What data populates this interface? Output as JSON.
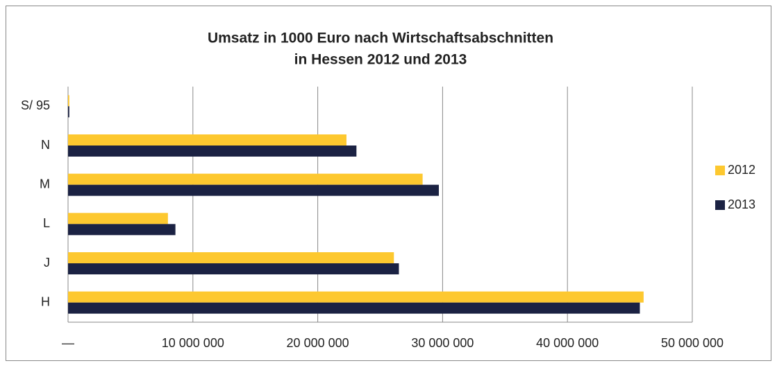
{
  "chart_data": {
    "type": "hbar",
    "title": [
      "Umsatz in 1000 Euro nach Wirtschaftsabschnitten",
      "in Hessen 2012 und 2013"
    ],
    "categories": [
      "S/ 95",
      "N",
      "M",
      "L",
      "J",
      "H"
    ],
    "series": [
      {
        "name": "2012",
        "color": "#fdc82f",
        "values": [
          100000,
          22300000,
          28400000,
          8000000,
          26100000,
          46100000
        ]
      },
      {
        "name": "2013",
        "color": "#1b2243",
        "values": [
          100000,
          23100000,
          29700000,
          8600000,
          26500000,
          45800000
        ]
      }
    ],
    "xlim": [
      0,
      50000000
    ],
    "xticks": [
      {
        "value": 0,
        "label": "—"
      },
      {
        "value": 10000000,
        "label": "10 000 000"
      },
      {
        "value": 20000000,
        "label": "20 000 000"
      },
      {
        "value": 30000000,
        "label": "30 000 000"
      },
      {
        "value": 40000000,
        "label": "40 000 000"
      },
      {
        "value": 50000000,
        "label": "50 000 000"
      }
    ],
    "grid": true,
    "legend": "right"
  }
}
